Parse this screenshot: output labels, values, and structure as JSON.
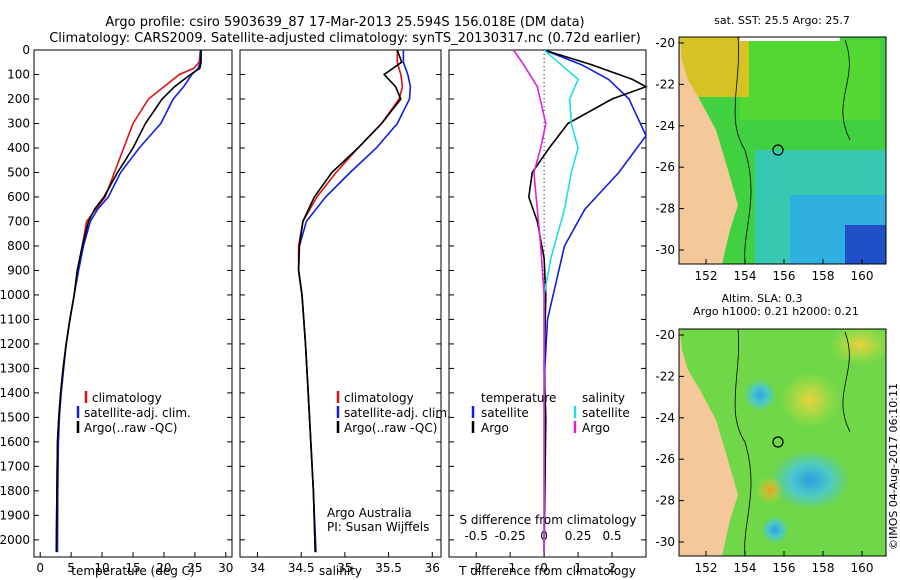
{
  "header": {
    "line1": "Argo profile: csiro 5903639_87 17-Mar-2013 25.594S 156.018E (DM data)",
    "line2": "Climatology: CARS2009. Satellite-adjusted climatology: synTS_20130317.nc (0.72d earlier)"
  },
  "colors": {
    "climatology": "#dd1111",
    "satellite": "#1020dd",
    "argo": "#000000",
    "sal_satellite": "#22dddd",
    "sal_argo": "#dd22dd"
  },
  "chart_data": [
    {
      "type": "line",
      "name": "temperature-profile",
      "xlabel": "temperature (deg C)",
      "ylabel": "",
      "xlim": [
        -1,
        31
      ],
      "ylim": [
        2070,
        0
      ],
      "xticks": [
        0,
        5,
        10,
        15,
        20,
        25,
        30
      ],
      "yticks": [
        0,
        100,
        200,
        300,
        400,
        500,
        600,
        700,
        800,
        900,
        1000,
        1100,
        1200,
        1300,
        1400,
        1500,
        1600,
        1700,
        1800,
        1900,
        2000
      ],
      "legend": [
        "climatology",
        "satellite-adj. clim.",
        "Argo(..raw -QC)"
      ],
      "series": [
        {
          "name": "climatology",
          "color": "#dd1111",
          "x": [
            25.9,
            25.7,
            24.8,
            22.5,
            20,
            17.5,
            15,
            13.5,
            12,
            10.5,
            9,
            7.5,
            6.8,
            6,
            5.5,
            4.8,
            4.2,
            3.7,
            3.3,
            3,
            2.8,
            2.7,
            2.6
          ],
          "y": [
            0,
            50,
            75,
            100,
            150,
            200,
            300,
            400,
            500,
            600,
            650,
            700,
            800,
            900,
            1000,
            1100,
            1200,
            1300,
            1400,
            1500,
            1600,
            1800,
            2050
          ]
        },
        {
          "name": "satellite",
          "color": "#1020dd",
          "x": [
            25.9,
            25.9,
            25.5,
            24.5,
            23.2,
            21.5,
            19.5,
            16,
            13,
            11,
            9.3,
            8.1,
            7,
            6.2,
            5.5,
            4.8,
            4.2,
            3.8,
            3.4,
            3.1,
            2.95,
            2.85,
            2.8
          ],
          "y": [
            0,
            50,
            75,
            100,
            150,
            200,
            300,
            400,
            500,
            600,
            650,
            700,
            800,
            900,
            1000,
            1100,
            1200,
            1300,
            1400,
            1500,
            1600,
            1800,
            2050
          ]
        },
        {
          "name": "argo",
          "color": "#000000",
          "x": [
            26,
            26,
            25.8,
            24.3,
            21.7,
            19.7,
            17,
            15,
            12.5,
            10.3,
            8.8,
            7.8,
            6.8,
            6,
            5.5,
            4.8,
            4.2,
            3.7,
            3.3,
            3,
            2.8,
            2.7,
            2.6
          ],
          "y": [
            0,
            50,
            75,
            100,
            150,
            200,
            300,
            400,
            500,
            600,
            650,
            700,
            800,
            900,
            1000,
            1100,
            1200,
            1300,
            1400,
            1500,
            1600,
            1800,
            2050
          ]
        }
      ]
    },
    {
      "type": "line",
      "name": "salinity-profile",
      "xlabel": "salinity",
      "xlim": [
        33.8,
        36.1
      ],
      "ylim": [
        2070,
        0
      ],
      "xticks": [
        34,
        34.5,
        35,
        35.5,
        36
      ],
      "legend": [
        "climatology",
        "satellite-adj. clim.",
        "Argo(..raw -QC)"
      ],
      "annotation": [
        "Argo Australia",
        "PI: Susan Wijffels"
      ],
      "series": [
        {
          "name": "climatology",
          "color": "#dd1111",
          "x": [
            35.6,
            35.6,
            35.64,
            35.66,
            35.62,
            35.42,
            35.15,
            34.9,
            34.68,
            34.52,
            34.47,
            34.47,
            34.51,
            34.55,
            34.58,
            34.61,
            34.64,
            34.66
          ],
          "y": [
            0,
            50,
            100,
            150,
            200,
            300,
            400,
            500,
            600,
            700,
            800,
            900,
            1000,
            1200,
            1400,
            1600,
            1800,
            2050
          ]
        },
        {
          "name": "satellite",
          "color": "#1020dd",
          "x": [
            35.67,
            35.67,
            35.72,
            35.75,
            35.74,
            35.6,
            35.36,
            35.06,
            34.78,
            34.56,
            34.48,
            34.47,
            34.51,
            34.55,
            34.58,
            34.61,
            34.64,
            34.67
          ],
          "y": [
            0,
            50,
            100,
            150,
            200,
            300,
            400,
            500,
            600,
            700,
            800,
            900,
            1000,
            1200,
            1400,
            1600,
            1800,
            2050
          ]
        },
        {
          "name": "argo",
          "color": "#000000",
          "x": [
            35.6,
            35.65,
            35.45,
            35.58,
            35.64,
            35.42,
            35.15,
            34.85,
            34.65,
            34.52,
            34.48,
            34.47,
            34.51,
            34.55,
            34.58,
            34.61,
            34.64,
            34.66
          ],
          "y": [
            0,
            50,
            100,
            150,
            200,
            300,
            400,
            500,
            600,
            700,
            800,
            900,
            1000,
            1200,
            1400,
            1600,
            1800,
            2050
          ]
        }
      ]
    },
    {
      "type": "line",
      "name": "difference-profile",
      "xlabel": "T difference from climatology",
      "top_axis_label": "S difference from climatology",
      "xlim": [
        -2.8,
        3.0
      ],
      "ylim": [
        2070,
        0
      ],
      "xticks": [
        -2,
        -1,
        0,
        1,
        2
      ],
      "sticks": [
        "-0.5",
        "-0.25",
        "0",
        "0.25",
        "0.5"
      ],
      "legend_temperature": [
        "temperature",
        "satellite",
        "Argo"
      ],
      "legend_salinity": [
        "salinity",
        "satellite",
        "Argo"
      ],
      "series": [
        {
          "name": "T satellite",
          "color": "#1020dd",
          "x": [
            0,
            1.1,
            1.9,
            2.5,
            3.0,
            2.2,
            1.2,
            0.6,
            0.35,
            0.1,
            0.02,
            0
          ],
          "y": [
            0,
            60,
            120,
            200,
            350,
            500,
            650,
            800,
            950,
            1100,
            1300,
            2050
          ]
        },
        {
          "name": "T argo",
          "color": "#000000",
          "x": [
            0,
            1.4,
            2.6,
            3.0,
            2.0,
            0.7,
            0.15,
            -0.35,
            -0.45,
            -0.2,
            0,
            0.05,
            0,
            0.05,
            0
          ],
          "y": [
            0,
            60,
            120,
            150,
            200,
            300,
            400,
            500,
            600,
            700,
            850,
            1000,
            1300,
            1500,
            2050
          ]
        },
        {
          "name": "S satellite",
          "color": "#22dddd",
          "x": [
            0,
            0.5,
            1.0,
            0.75,
            0.8,
            1.0,
            0.8,
            0.6,
            0.4,
            0.2,
            0,
            0
          ],
          "y": [
            0,
            60,
            120,
            200,
            300,
            400,
            500,
            650,
            750,
            850,
            1000,
            2050
          ]
        },
        {
          "name": "S argo",
          "color": "#dd22dd",
          "x": [
            -0.9,
            -0.6,
            -0.2,
            0.05,
            -0.1,
            -0.3,
            -0.2,
            -0.1,
            0,
            0
          ],
          "y": [
            0,
            60,
            150,
            300,
            400,
            500,
            650,
            800,
            1000,
            2050
          ]
        }
      ]
    }
  ],
  "maps": {
    "top": {
      "title": "sat. SST: 25.5 Argo: 25.7",
      "yticks": [
        "-20",
        "-22",
        "-24",
        "-26",
        "-28",
        "-30"
      ],
      "xticks": [
        "152",
        "154",
        "156",
        "158",
        "160"
      ]
    },
    "bottom": {
      "title1": "Altim. SLA: 0.3",
      "title2": "Argo h1000: 0.21 h2000: 0.21",
      "yticks": [
        "-20",
        "-22",
        "-24",
        "-26",
        "-28",
        "-30"
      ],
      "xticks": [
        "152",
        "154",
        "156",
        "158",
        "160"
      ]
    }
  },
  "credit": "©IMOS 04-Aug-2017 06:10:11"
}
